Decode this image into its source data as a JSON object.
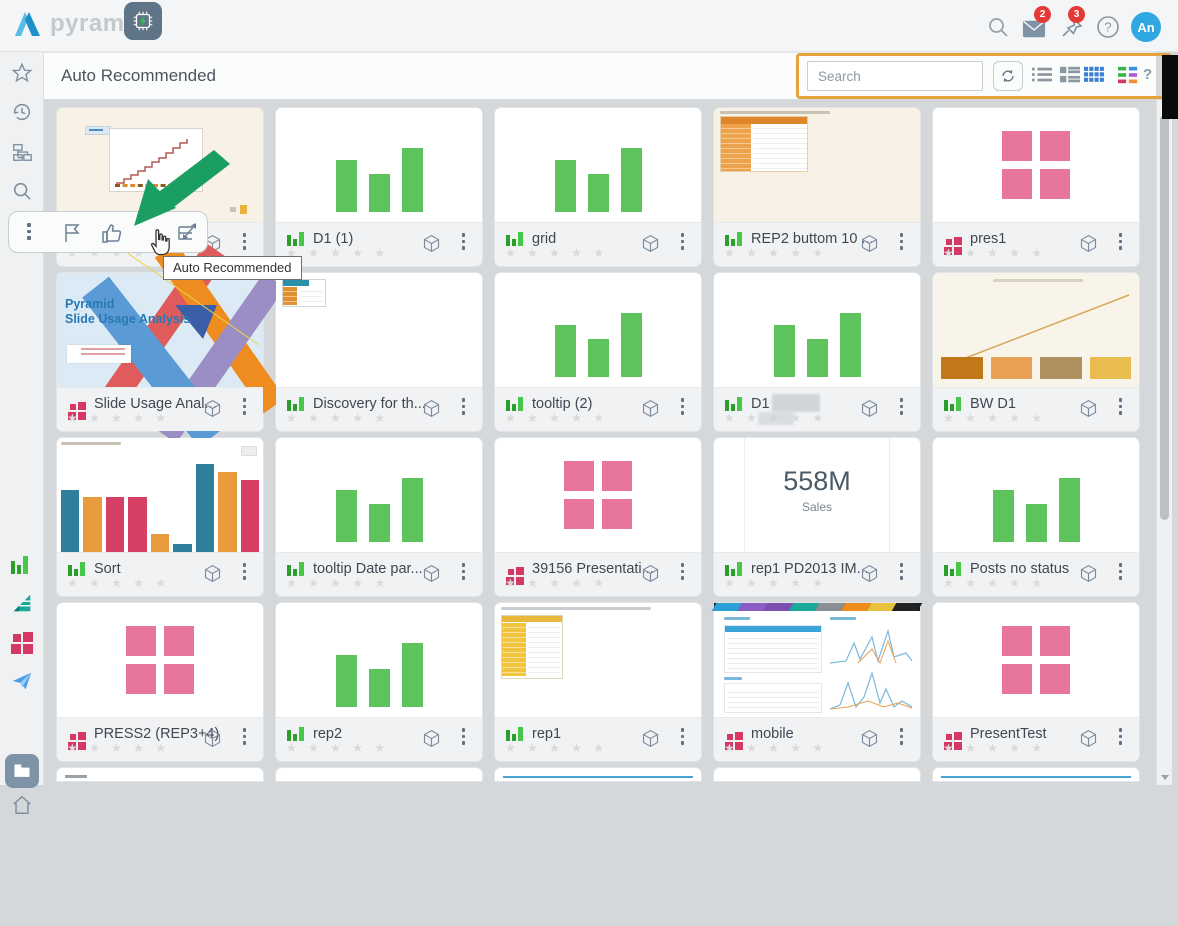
{
  "topbar": {
    "brand": "pyramid",
    "mail_badge": "2",
    "pin_badge": "3",
    "avatar_initials": "An"
  },
  "header": {
    "title": "Auto Recommended",
    "search_placeholder": "Search",
    "help_label": "?"
  },
  "annotation": {
    "tooltip_text": "Auto Recommended",
    "highlight_color": "#e5a23a"
  },
  "icons": {
    "topbar": [
      "search-icon",
      "mail-icon",
      "pin-icon",
      "help-icon"
    ],
    "toolbar": [
      "search-icon",
      "refresh-icon",
      "list-view-icon",
      "detail-view-icon",
      "grid-view-icon",
      "color-list-view-icon"
    ],
    "sidebar_top": [
      "favorites-star-icon",
      "history-icon",
      "hierarchy-icon",
      "search-icon"
    ],
    "sidebar_bottom": [
      "discover-icon",
      "model-icon",
      "present-icon",
      "publish-icon",
      "content-folder-icon",
      "home-icon"
    ],
    "hover_toolbar": [
      "more-kebab-icon",
      "flag-icon",
      "thumbs-up-icon",
      "auto-recommend-chip-icon",
      "smart-discover-icon"
    ],
    "tile": [
      "content-type-icon",
      "data-model-cube-icon",
      "tile-menu-kebab-icon"
    ]
  },
  "colors": {
    "accent_orange": "#e5a23a",
    "badge_red": "#e53935",
    "avatar_blue": "#2fa7e0",
    "active_view_blue": "#3b7fd4",
    "thumb_green_bar": "#5dc35d",
    "thumb_pink_square": "#e8769c",
    "type_green_dark": "#2b9e2b",
    "type_green_bright": "#47c747",
    "type_pink": "#d63864",
    "chip_button_bg": "#5f7486",
    "chip_bolt_green": "#35c04f",
    "annotation_arrow_green": "#1a9e62"
  },
  "tile_common": {
    "stars": "★ ★ ★ ★ ★"
  },
  "thumb_specs": {
    "green_bars": [
      52,
      38,
      64
    ],
    "sort_chart": {
      "bar_colors": {
        "teal": "#2e7f99",
        "orange": "#e89b3c",
        "red": "#d64065"
      },
      "bars": [
        {
          "c": "teal",
          "h": 62
        },
        {
          "c": "orange",
          "h": 55
        },
        {
          "c": "red",
          "h": 55
        },
        {
          "c": "red",
          "h": 55
        },
        {
          "c": "orange",
          "h": 18
        },
        {
          "c": "teal",
          "h": 8
        },
        {
          "c": "teal",
          "h": 88
        },
        {
          "c": "orange",
          "h": 80
        },
        {
          "c": "red",
          "h": 72
        }
      ]
    },
    "bw_chart": {
      "bar_colors": [
        "#c07818",
        "#e8a055",
        "#b09060",
        "#e9bc4f"
      ]
    }
  },
  "slide_thumb": {
    "line1": "Pyramid",
    "line2": "Slide Usage Analysis"
  },
  "tiles": [
    {
      "name": "",
      "type": "discover",
      "thumb": "step-chart"
    },
    {
      "name": "D1 (1)",
      "type": "discover",
      "thumb": "green-bars"
    },
    {
      "name": "grid",
      "type": "discover",
      "thumb": "green-bars"
    },
    {
      "name": "REP2 buttom 10 ...",
      "type": "discover",
      "thumb": "orange-table-cream"
    },
    {
      "name": "pres1",
      "type": "present",
      "thumb": "pink-squares"
    },
    {
      "name": "Slide Usage Anal...",
      "type": "present",
      "thumb": "slide-x"
    },
    {
      "name": "Discovery for th...",
      "type": "discover",
      "thumb": "mini-table-white"
    },
    {
      "name": "tooltip (2)",
      "type": "discover",
      "thumb": "green-bars"
    },
    {
      "name": "D1",
      "type": "discover",
      "thumb": "green-bars",
      "redacted": true
    },
    {
      "name": "BW D1",
      "type": "discover",
      "thumb": "bw-chart"
    },
    {
      "name": "Sort",
      "type": "discover",
      "thumb": "sort-chart"
    },
    {
      "name": "tooltip Date par...",
      "type": "discover",
      "thumb": "green-bars"
    },
    {
      "name": "39156 Presentati...",
      "type": "present",
      "thumb": "pink-squares"
    },
    {
      "name": "rep1 PD2013 IM...",
      "type": "discover",
      "thumb": "big-number",
      "big_number": "558M",
      "big_label": "Sales"
    },
    {
      "name": "Posts no status",
      "type": "discover",
      "thumb": "green-bars"
    },
    {
      "name": "PRESS2 (REP3+4)",
      "type": "present",
      "thumb": "pink-squares"
    },
    {
      "name": "rep2",
      "type": "discover",
      "thumb": "green-bars"
    },
    {
      "name": "rep1",
      "type": "discover",
      "thumb": "yellow-table"
    },
    {
      "name": "mobile",
      "type": "present",
      "thumb": "mobile-dash"
    },
    {
      "name": "PresentTest",
      "type": "present",
      "thumb": "pink-squares"
    }
  ],
  "row5_stubs": [
    "gray-text",
    "plain",
    "blue-line",
    "plain",
    "blue-line"
  ]
}
